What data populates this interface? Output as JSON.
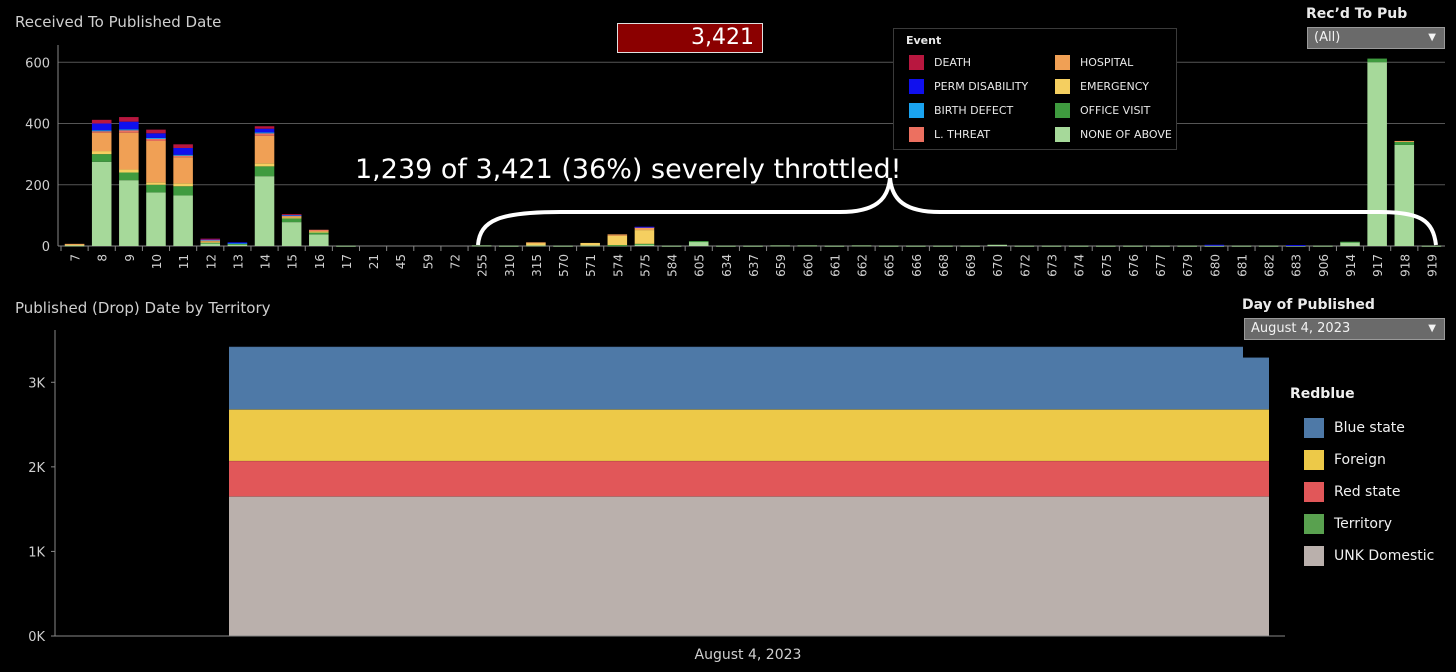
{
  "top_panel": {
    "title": "Received To Published Date",
    "total_value": "3,421",
    "annotation": "1,239 of 3,421 (36%) severely throttled!",
    "filter": {
      "label": "Rec’d To Pub",
      "value": "(All)"
    }
  },
  "bottom_panel": {
    "title": "Published (Drop) Date by Territory",
    "filter": {
      "label": "Day of Published",
      "value": "August 4, 2023"
    }
  },
  "chart_data": [
    {
      "type": "bar",
      "title": "Received To Published Date",
      "stacked": true,
      "ylim": [
        0,
        640
      ],
      "yticks": [
        0,
        200,
        400,
        600
      ],
      "grid": true,
      "legend_title": "Event",
      "legend_position": "top-right",
      "categories": [
        "7",
        "8",
        "9",
        "10",
        "11",
        "12",
        "13",
        "14",
        "15",
        "16",
        "17",
        "21",
        "45",
        "59",
        "72",
        "255",
        "310",
        "315",
        "570",
        "571",
        "574",
        "575",
        "584",
        "605",
        "634",
        "637",
        "659",
        "660",
        "661",
        "662",
        "665",
        "666",
        "668",
        "669",
        "670",
        "672",
        "673",
        "674",
        "675",
        "676",
        "677",
        "679",
        "680",
        "681",
        "682",
        "683",
        "906",
        "914",
        "917",
        "918",
        "919"
      ],
      "series": [
        {
          "name": "NONE OF ABOVE",
          "color": "#a6d99a",
          "values": [
            2,
            275,
            215,
            175,
            165,
            8,
            5,
            228,
            78,
            38,
            1,
            0,
            0,
            0,
            0,
            2,
            1,
            2,
            1,
            2,
            2,
            5,
            1,
            15,
            1,
            1,
            2,
            2,
            1,
            2,
            1,
            1,
            1,
            1,
            4,
            1,
            1,
            1,
            1,
            1,
            1,
            1,
            1,
            1,
            1,
            1,
            1,
            12,
            600,
            330,
            1
          ]
        },
        {
          "name": "OFFICE VISIT",
          "color": "#3f9b3f",
          "values": [
            0,
            25,
            25,
            25,
            30,
            3,
            2,
            32,
            12,
            6,
            0,
            0,
            0,
            0,
            0,
            0,
            0,
            0,
            0,
            0,
            1,
            2,
            0,
            1,
            0,
            0,
            0,
            0,
            0,
            0,
            0,
            0,
            0,
            0,
            0,
            0,
            0,
            0,
            0,
            0,
            0,
            0,
            0,
            0,
            0,
            0,
            0,
            2,
            12,
            10,
            0
          ]
        },
        {
          "name": "EMERGENCY",
          "color": "#f5cf60",
          "values": [
            3,
            10,
            10,
            8,
            10,
            3,
            0,
            10,
            4,
            3,
            0,
            0,
            0,
            0,
            0,
            0,
            0,
            8,
            0,
            8,
            30,
            45,
            0,
            0,
            0,
            0,
            0,
            0,
            0,
            0,
            0,
            0,
            0,
            0,
            0,
            0,
            0,
            0,
            0,
            0,
            0,
            0,
            0,
            0,
            0,
            0,
            0,
            0,
            0,
            0,
            0
          ]
        },
        {
          "name": "HOSPITAL",
          "color": "#f0a055",
          "values": [
            2,
            60,
            120,
            135,
            85,
            5,
            0,
            90,
            4,
            5,
            0,
            0,
            0,
            0,
            0,
            0,
            0,
            2,
            0,
            0,
            5,
            8,
            0,
            0,
            0,
            0,
            0,
            0,
            0,
            0,
            0,
            0,
            0,
            0,
            0,
            0,
            0,
            0,
            0,
            0,
            0,
            0,
            0,
            0,
            0,
            0,
            0,
            0,
            0,
            3,
            0
          ]
        },
        {
          "name": "L. THREAT",
          "color": "#ec7060",
          "values": [
            0,
            5,
            8,
            8,
            5,
            1,
            0,
            8,
            2,
            1,
            0,
            0,
            0,
            0,
            0,
            0,
            0,
            0,
            0,
            0,
            0,
            2,
            0,
            0,
            0,
            0,
            0,
            0,
            0,
            0,
            0,
            0,
            0,
            0,
            0,
            0,
            0,
            0,
            0,
            0,
            0,
            0,
            0,
            0,
            0,
            0,
            0,
            0,
            0,
            0,
            0
          ]
        },
        {
          "name": "BIRTH DEFECT",
          "color": "#1aa3f0",
          "values": [
            0,
            3,
            3,
            2,
            3,
            1,
            3,
            3,
            1,
            0,
            0,
            0,
            0,
            0,
            0,
            0,
            0,
            0,
            0,
            0,
            0,
            0,
            0,
            0,
            0,
            0,
            0,
            0,
            0,
            0,
            0,
            0,
            0,
            0,
            0,
            0,
            0,
            0,
            0,
            0,
            0,
            0,
            0,
            0,
            0,
            0,
            0,
            0,
            0,
            0,
            0
          ]
        },
        {
          "name": "PERM DISABILITY",
          "color": "#1010ee",
          "values": [
            0,
            22,
            25,
            15,
            22,
            2,
            2,
            12,
            2,
            0,
            0,
            0,
            0,
            0,
            0,
            0,
            0,
            0,
            0,
            0,
            0,
            1,
            0,
            0,
            0,
            0,
            0,
            0,
            0,
            0,
            0,
            0,
            0,
            0,
            0,
            0,
            0,
            0,
            0,
            0,
            0,
            0,
            3,
            0,
            0,
            2,
            0,
            0,
            0,
            0,
            0
          ]
        },
        {
          "name": "DEATH",
          "color": "#b8173f",
          "values": [
            0,
            12,
            15,
            12,
            12,
            1,
            0,
            8,
            1,
            0,
            0,
            0,
            0,
            0,
            0,
            0,
            0,
            0,
            0,
            0,
            0,
            0,
            0,
            0,
            0,
            0,
            0,
            0,
            0,
            0,
            0,
            0,
            0,
            0,
            0,
            0,
            0,
            0,
            0,
            0,
            0,
            0,
            0,
            0,
            0,
            0,
            0,
            0,
            0,
            0,
            0
          ]
        }
      ]
    },
    {
      "type": "area",
      "title": "Published (Drop) Date by Territory",
      "stacked": true,
      "x": [
        "August 4, 2023"
      ],
      "ylim": [
        0,
        3500
      ],
      "yticks": [
        0,
        1000,
        2000,
        3000
      ],
      "yticklabels": [
        "0K",
        "1K",
        "2K",
        "3K"
      ],
      "legend_title": "Redblue",
      "legend_position": "right",
      "series": [
        {
          "name": "UNK Domestic",
          "color": "#bab0ac",
          "value": 1650
        },
        {
          "name": "Territory",
          "color": "#59a14f",
          "value": 0
        },
        {
          "name": "Red state",
          "color": "#e15759",
          "value": 420
        },
        {
          "name": "Foreign",
          "color": "#edc948",
          "value": 610
        },
        {
          "name": "Blue state",
          "color": "#4e79a7",
          "value": 741
        }
      ]
    }
  ]
}
